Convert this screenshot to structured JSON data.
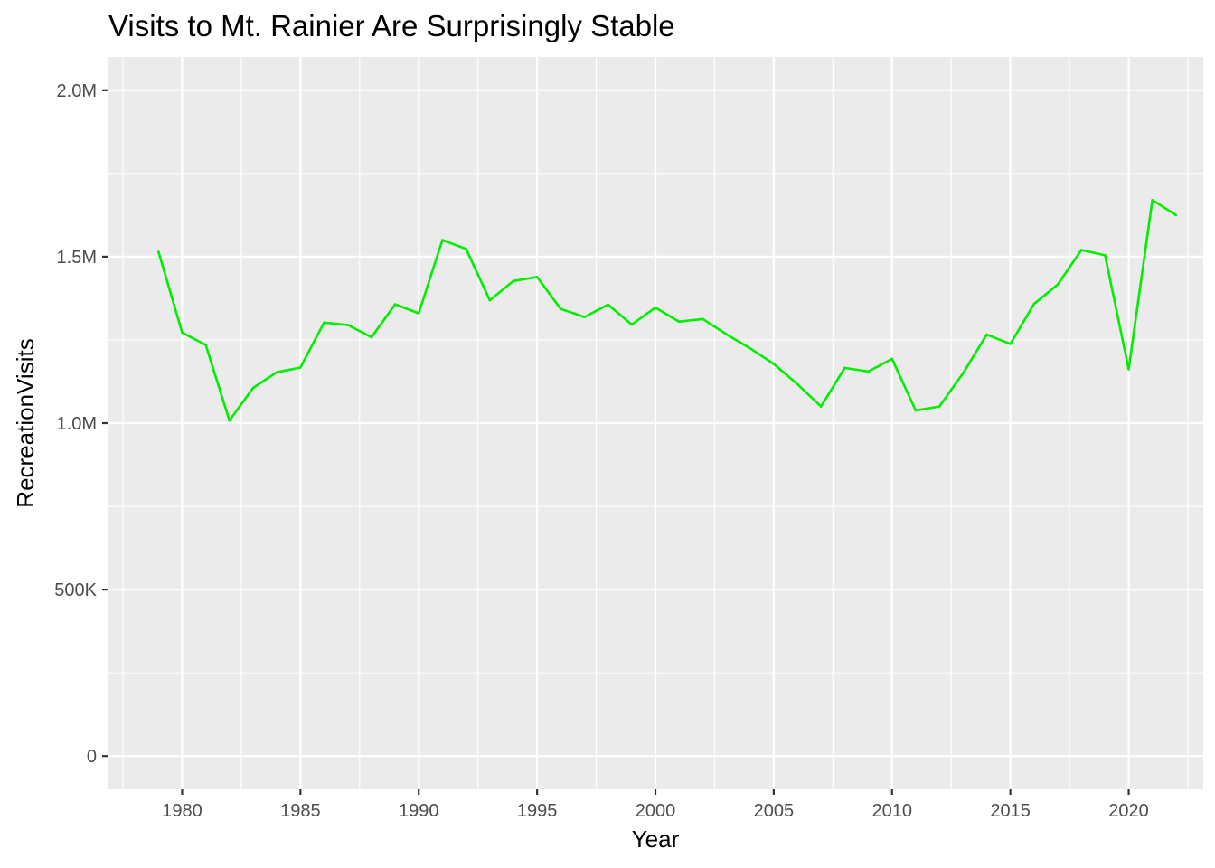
{
  "chart_data": {
    "type": "line",
    "title": "Visits to Mt. Rainier Are Surprisingly Stable",
    "xlabel": "Year",
    "ylabel": "RecreationVisits",
    "xlim": [
      1976.85,
      1724.15
    ],
    "ylim": [
      -100000,
      2100000
    ],
    "x_ticks": [
      1980,
      1985,
      1990,
      1995,
      2000,
      2005,
      2010,
      2015,
      2020
    ],
    "x_tick_labels": [
      "1980",
      "1985",
      "1990",
      "1995",
      "2000",
      "2005",
      "2010",
      "2015",
      "2020"
    ],
    "y_ticks": [
      0,
      500000,
      1000000,
      1500000,
      2000000
    ],
    "y_tick_labels": [
      "0",
      "500K",
      "1.0M",
      "1.5M",
      "2.0M"
    ],
    "grid": true,
    "panel_background": "#EBEBEB",
    "grid_color": "#FFFFFF",
    "series": [
      {
        "color": "#00EE00",
        "x": [
          1979,
          1980,
          1981,
          1982,
          1983,
          1984,
          1985,
          1986,
          1987,
          1988,
          1989,
          1990,
          1991,
          1992,
          1993,
          1994,
          1995,
          1996,
          1997,
          1998,
          1999,
          2000,
          2001,
          2002,
          2003,
          2004,
          2005,
          2006,
          2007,
          2008,
          2009,
          2010,
          2011,
          2012,
          2013,
          2014,
          2015,
          2016,
          2017,
          2018,
          2019,
          2020,
          2021,
          2022
        ],
        "values": [
          1515000,
          1272000,
          1235000,
          1008000,
          1106000,
          1153000,
          1167000,
          1302000,
          1295000,
          1258000,
          1357000,
          1330000,
          1550000,
          1523000,
          1369000,
          1427000,
          1439000,
          1343000,
          1319000,
          1356000,
          1296000,
          1347000,
          1305000,
          1313000,
          1267000,
          1225000,
          1178000,
          1117000,
          1050000,
          1166000,
          1155000,
          1193000,
          1038000,
          1050000,
          1150000,
          1266000,
          1238000,
          1358000,
          1416000,
          1520000,
          1504000,
          1162000,
          1670000,
          1625000
        ]
      }
    ]
  }
}
